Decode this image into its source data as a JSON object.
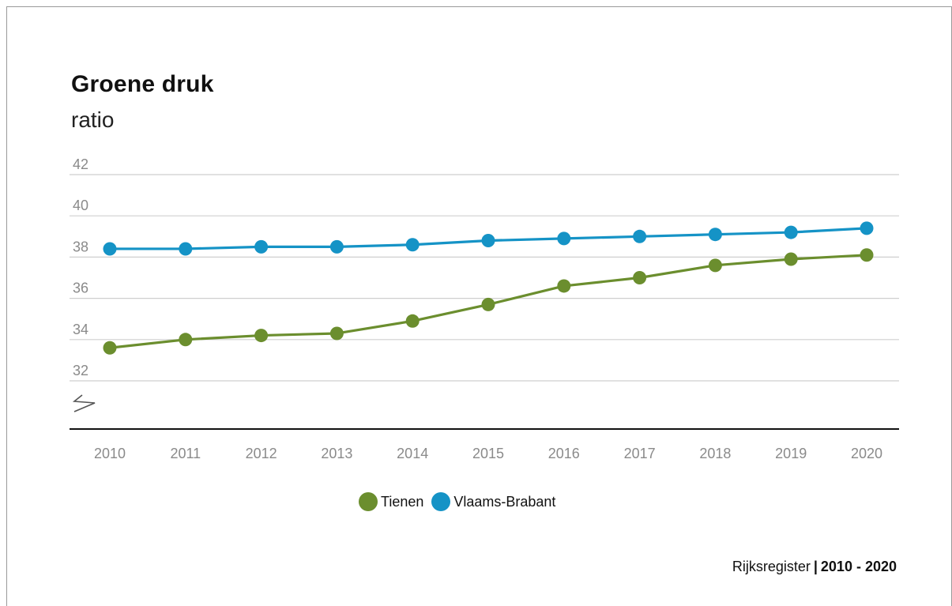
{
  "chart_data": {
    "type": "line",
    "title": "Groene druk",
    "subtitle": "ratio",
    "categories": [
      "2010",
      "2011",
      "2012",
      "2013",
      "2014",
      "2015",
      "2016",
      "2017",
      "2018",
      "2019",
      "2020"
    ],
    "y_ticks": [
      "42",
      "40",
      "38",
      "36",
      "34",
      "32"
    ],
    "ylim": [
      32,
      42
    ],
    "axis_break": true,
    "grid": true,
    "legend_position": "bottom-center",
    "series": [
      {
        "name": "Tienen",
        "color": "#6b8e2e",
        "values": [
          33.6,
          34.0,
          34.2,
          34.3,
          34.9,
          35.7,
          36.6,
          37.0,
          37.6,
          37.9,
          38.1
        ]
      },
      {
        "name": "Vlaams-Brabant",
        "color": "#1593c6",
        "values": [
          38.4,
          38.4,
          38.5,
          38.5,
          38.6,
          38.8,
          38.9,
          39.0,
          39.1,
          39.2,
          39.4
        ]
      }
    ]
  },
  "source": {
    "name": "Rijksregister",
    "separator": "|",
    "range": "2010 - 2020"
  }
}
